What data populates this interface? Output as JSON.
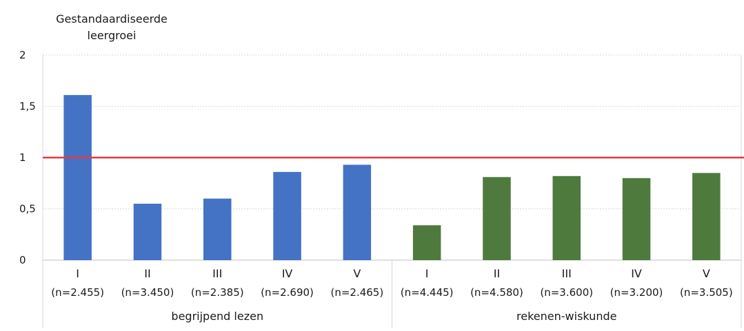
{
  "chart_data": {
    "type": "bar",
    "ylabel_lines": [
      "Gestandaardiseerde",
      "leergroei"
    ],
    "xlabel": "",
    "ylim": [
      0,
      2
    ],
    "yticks": [
      "0",
      "0,5",
      "1",
      "1,5",
      "2"
    ],
    "ytick_values": [
      0,
      0.5,
      1,
      1.5,
      2
    ],
    "grid": true,
    "reference_line": {
      "value": 1.0,
      "color": "#e8383d"
    },
    "groups": [
      {
        "name": "begrijpend lezen",
        "color": "#4472c4",
        "categories": [
          "I",
          "II",
          "III",
          "IV",
          "V"
        ],
        "n_labels": [
          "(n=2.455)",
          "(n=3.450)",
          "(n=2.385)",
          "(n=2.690)",
          "(n=2.465)"
        ],
        "values": [
          1.61,
          0.55,
          0.6,
          0.86,
          0.93
        ]
      },
      {
        "name": "rekenen-wiskunde",
        "color": "#4e7a3e",
        "categories": [
          "I",
          "II",
          "III",
          "IV",
          "V"
        ],
        "n_labels": [
          "(n=4.445)",
          "(n=4.580)",
          "(n=3.600)",
          "(n=3.200)",
          "(n=3.505)"
        ],
        "values": [
          0.34,
          0.81,
          0.82,
          0.8,
          0.85
        ]
      }
    ]
  }
}
